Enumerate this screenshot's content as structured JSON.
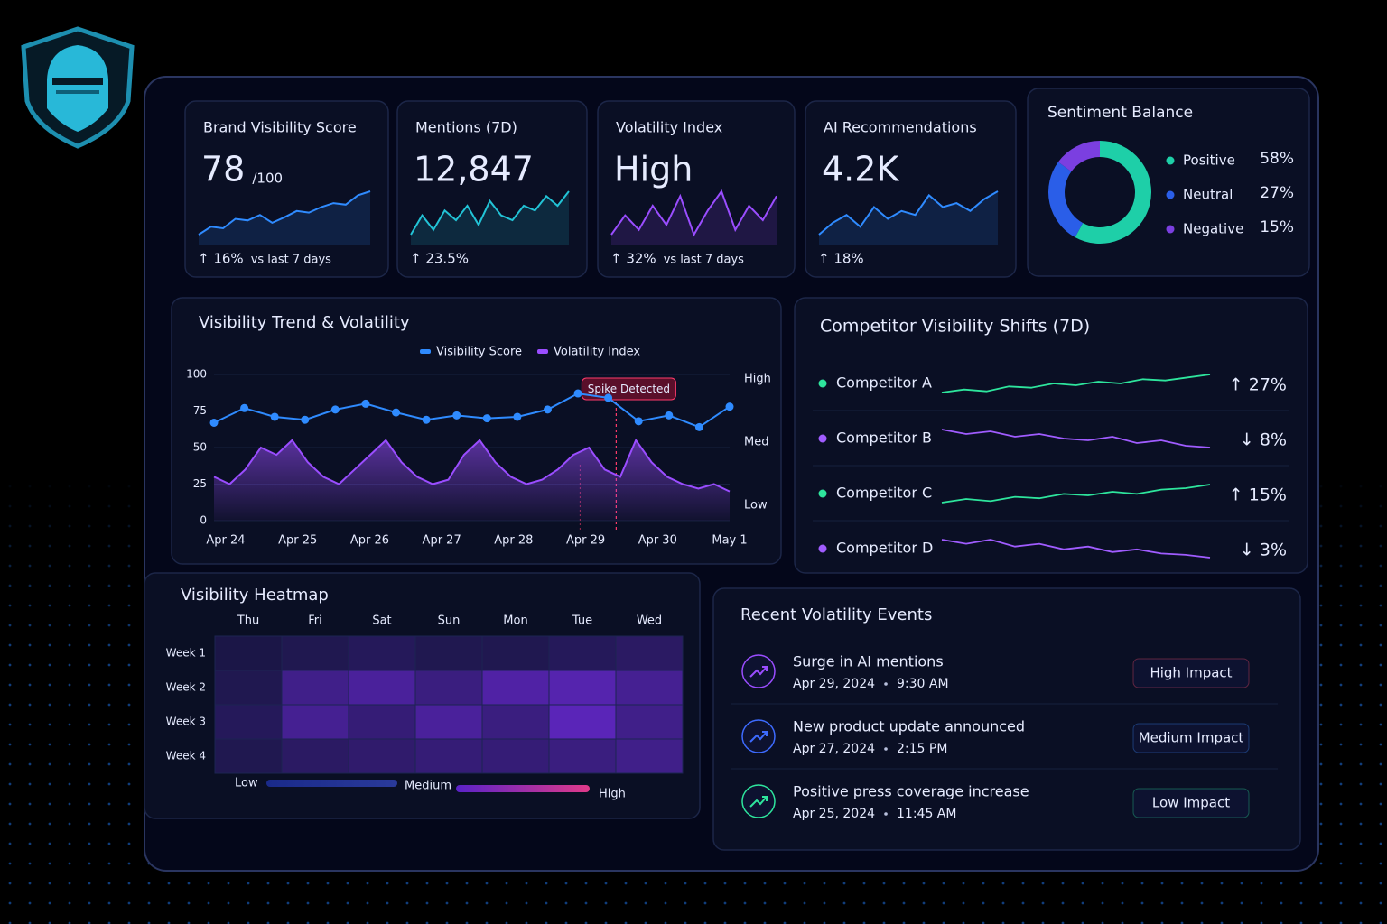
{
  "kpis": [
    {
      "title": "Brand Visibility Score",
      "value": "78",
      "unit": "/100",
      "change": "↑ 16%",
      "note": "vs last 7 days",
      "value_color": "#f2f5ff",
      "change_color": "#2ee59d",
      "line_color": "#2f8bff",
      "spark": [
        20,
        30,
        28,
        40,
        38,
        45,
        35,
        42,
        50,
        48,
        55,
        60,
        58,
        70,
        75
      ]
    },
    {
      "title": "Mentions (7D)",
      "value": "12,847",
      "change": "↑ 23.5%",
      "value_color": "#f2f5ff",
      "change_color": "#2ee59d",
      "line_color": "#22c3d6",
      "spark": [
        25,
        45,
        30,
        50,
        40,
        55,
        35,
        60,
        45,
        40,
        55,
        50,
        65,
        55,
        70
      ]
    },
    {
      "title": "Volatility Index",
      "value": "High",
      "change": "↑ 32%",
      "note": "vs last 7 days",
      "value_color": "#b57cff",
      "change_color": "#b57cff",
      "line_color": "#9a4dff",
      "spark": [
        30,
        50,
        35,
        60,
        40,
        70,
        30,
        55,
        75,
        35,
        60,
        45,
        70
      ]
    },
    {
      "title": "AI Recommendations",
      "value": "4.2K",
      "change": "↑ 18%",
      "value_color": "#f2f5ff",
      "change_color": "#2ee59d",
      "line_color": "#2f8bff",
      "spark": [
        20,
        35,
        45,
        30,
        55,
        40,
        50,
        45,
        70,
        55,
        60,
        50,
        65,
        75
      ]
    }
  ],
  "sentiment": {
    "title": "Sentiment Balance",
    "categories": [
      "Positive",
      "Neutral",
      "Negative"
    ],
    "values": [
      58,
      27,
      15
    ],
    "value_labels": [
      "58%",
      "27%",
      "15%"
    ],
    "colors": [
      "#1ecfa8",
      "#2a5ee8",
      "#7b3fe0"
    ]
  },
  "trend": {
    "title": "Visibility Trend & Volatility",
    "x_labels": [
      "Apr 24",
      "Apr 25",
      "Apr 26",
      "Apr 27",
      "Apr 28",
      "Apr 29",
      "Apr 30",
      "May 1"
    ],
    "ylim": [
      0,
      100
    ],
    "yticks": [
      0,
      25,
      50,
      75,
      100
    ],
    "y2_labels": [
      "High",
      "Med",
      "Low"
    ],
    "annotation": "Spike Detected",
    "series": [
      {
        "name": "Visibility Score",
        "color": "#2f8bff",
        "values": [
          67,
          77,
          71,
          69,
          76,
          80,
          74,
          69,
          72,
          70,
          71,
          76,
          87,
          84,
          68,
          72,
          64,
          78
        ]
      },
      {
        "name": "Volatility Index",
        "color": "#9a4dff",
        "values": [
          30,
          25,
          35,
          50,
          45,
          55,
          40,
          30,
          25,
          35,
          45,
          55,
          40,
          30,
          25,
          28,
          45,
          55,
          40,
          30,
          25,
          28,
          35,
          45,
          50,
          35,
          30,
          55,
          40,
          30,
          25,
          22,
          25,
          20
        ]
      }
    ]
  },
  "competitors": {
    "title": "Competitor Visibility Shifts (7D)",
    "rows": [
      {
        "name": "Competitor A",
        "change": "↑ 27%",
        "color": "#2ee59d",
        "spark": [
          40,
          45,
          42,
          50,
          48,
          55,
          52,
          58,
          55,
          62,
          60,
          65,
          70
        ]
      },
      {
        "name": "Competitor B",
        "change": "↓ 8%",
        "color": "#a05cff",
        "spark": [
          60,
          55,
          58,
          52,
          55,
          50,
          48,
          52,
          45,
          48,
          42,
          40
        ]
      },
      {
        "name": "Competitor C",
        "change": "↑ 15%",
        "color": "#2ee59d",
        "spark": [
          40,
          45,
          42,
          48,
          46,
          52,
          50,
          55,
          52,
          58,
          60,
          65
        ]
      },
      {
        "name": "Competitor D",
        "change": "↓ 3%",
        "color": "#a05cff",
        "spark": [
          55,
          52,
          55,
          50,
          52,
          48,
          50,
          46,
          48,
          45,
          44,
          42
        ]
      }
    ]
  },
  "heatmap": {
    "title": "Visibility Heatmap",
    "columns": [
      "Thu",
      "Fri",
      "Sat",
      "Sun",
      "Mon",
      "Tue",
      "Wed"
    ],
    "rows": [
      "Week 1",
      "Week 2",
      "Week 3",
      "Week 4"
    ],
    "values": [
      [
        10,
        15,
        20,
        15,
        15,
        20,
        25
      ],
      [
        15,
        45,
        55,
        40,
        60,
        65,
        50
      ],
      [
        20,
        50,
        35,
        55,
        40,
        70,
        45
      ],
      [
        15,
        25,
        30,
        35,
        35,
        40,
        45
      ]
    ],
    "legend": [
      "Low",
      "Medium",
      "High"
    ]
  },
  "events": {
    "title": "Recent Volatility Events",
    "items": [
      {
        "title": "Surge in AI mentions",
        "date": "Apr 29, 2024",
        "time": "9:30 AM",
        "impact": "High Impact",
        "color": "#ff4d6d",
        "icon_color": "#9a4dff"
      },
      {
        "title": "New product update announced",
        "date": "Apr 27, 2024",
        "time": "2:15 PM",
        "impact": "Medium Impact",
        "color": "#3d8bff",
        "icon_color": "#3d6bff"
      },
      {
        "title": "Positive press coverage increase",
        "date": "Apr 25, 2024",
        "time": "11:45 AM",
        "impact": "Low Impact",
        "color": "#2ee59d",
        "icon_color": "#2ee59d"
      }
    ]
  }
}
